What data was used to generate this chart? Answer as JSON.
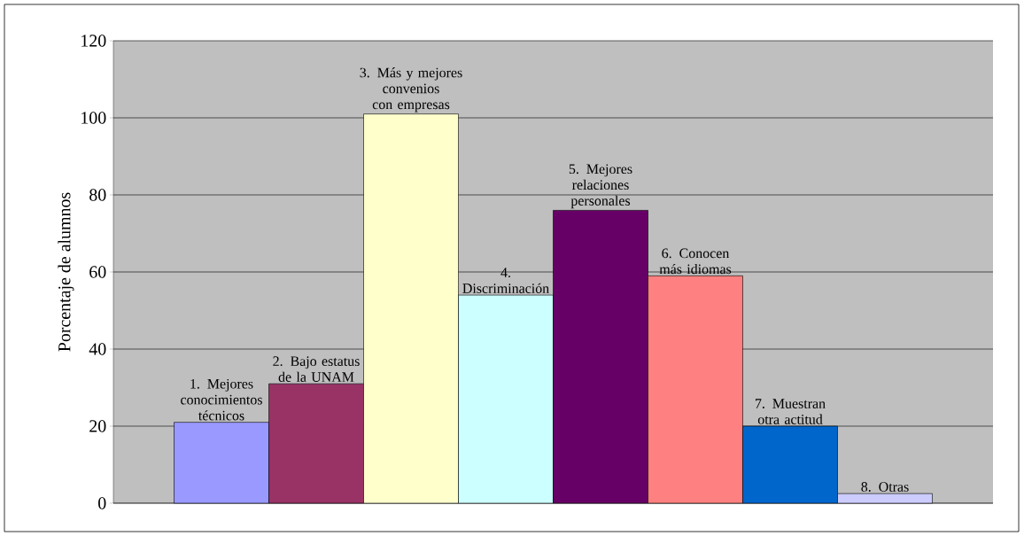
{
  "chart_data": {
    "type": "bar",
    "ylabel": "Porcentaje de alumnos",
    "categories": [
      null
    ],
    "series": [
      {
        "name": "1. Mejores conocimientos técnicos",
        "color": "#9999ff",
        "values": [
          21
        ]
      },
      {
        "name": "2. Bajo estatus de la UNAM",
        "color": "#993366",
        "values": [
          31
        ]
      },
      {
        "name": "3. Más y mejores convenios con empresas",
        "color": "#ffffcc",
        "values": [
          101
        ]
      },
      {
        "name": "4. Discriminación",
        "color": "#ccffff",
        "values": [
          54
        ]
      },
      {
        "name": "5. Mejores relaciones personales",
        "color": "#660066",
        "values": [
          76
        ]
      },
      {
        "name": "6. Conocen más idiomas",
        "color": "#ff8080",
        "values": [
          59
        ]
      },
      {
        "name": "7. Muestran otra actitud",
        "color": "#0066cc",
        "values": [
          20
        ]
      },
      {
        "name": "8. Otras",
        "color": "#ccccff",
        "values": [
          2.5
        ]
      }
    ],
    "ylim": [
      0,
      120
    ],
    "yticks": [
      0,
      20,
      40,
      60,
      80,
      100,
      120
    ],
    "grid": "y"
  }
}
